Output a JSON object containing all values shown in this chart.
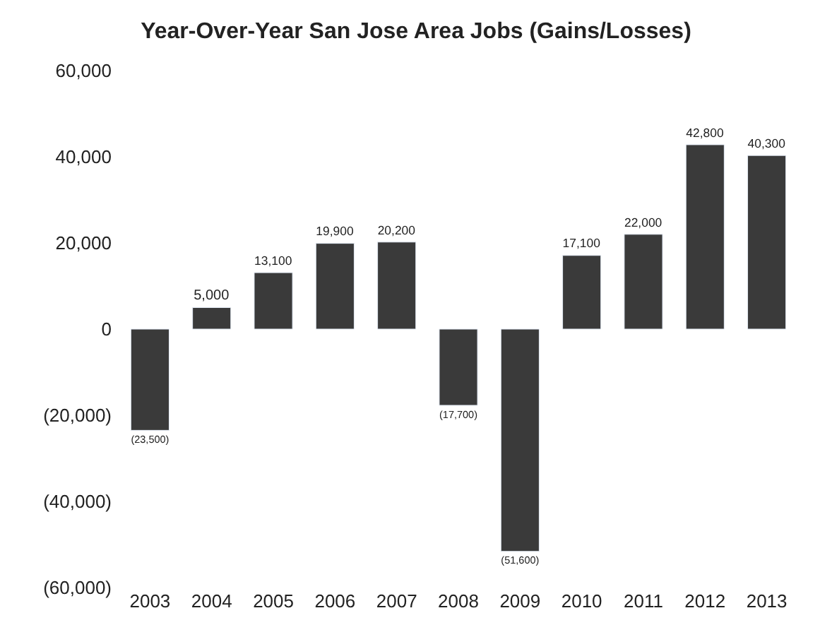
{
  "chart_data": {
    "type": "bar",
    "title": "Year-Over-Year San Jose Area Jobs (Gains/Losses)",
    "categories": [
      "2003",
      "2004",
      "2005",
      "2006",
      "2007",
      "2008",
      "2009",
      "2010",
      "2011",
      "2012",
      "2013"
    ],
    "values": [
      -23500,
      5000,
      13100,
      19900,
      20200,
      -17700,
      -51600,
      17100,
      22000,
      42800,
      40300
    ],
    "value_labels": [
      "(23,500)",
      "5,000",
      "13,100",
      "19,900",
      "20,200",
      "(17,700)",
      "(51,600)",
      "17,100",
      "22,000",
      "42,800",
      "40,300"
    ],
    "color": "#3a3a3a",
    "ylim": [
      -60000,
      60000
    ],
    "yticks": [
      {
        "value": -60000,
        "label": "(60,000)"
      },
      {
        "value": -40000,
        "label": "(40,000)"
      },
      {
        "value": -20000,
        "label": "(20,000)"
      },
      0,
      {
        "value": 20000,
        "label": "20,000"
      },
      {
        "value": 40000,
        "label": "40,000"
      },
      {
        "value": 60000,
        "label": "60,000"
      }
    ],
    "tick_labels": "xy"
  }
}
